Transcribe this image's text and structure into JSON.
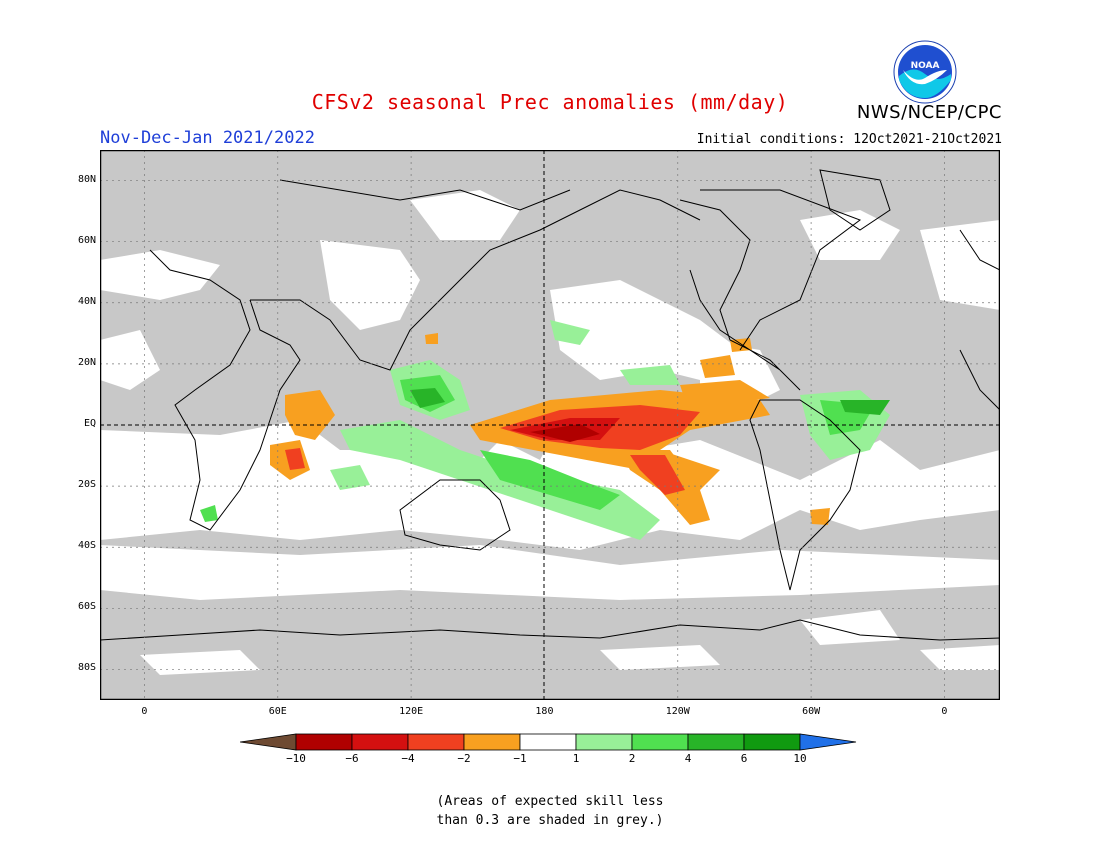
{
  "header": {
    "title": "CFSv2 seasonal Prec anomalies (mm/day)",
    "org": "NWS/NCEP/CPC",
    "logo_text": "NOAA",
    "period": "Nov-Dec-Jan 2021/2022",
    "initial_conditions": "Initial conditions: 12Oct2021-21Oct2021"
  },
  "map": {
    "lat_labels": [
      "80N",
      "60N",
      "40N",
      "20N",
      "EQ",
      "20S",
      "40S",
      "60S",
      "80S"
    ],
    "lat_values": [
      80,
      60,
      40,
      20,
      0,
      -20,
      -40,
      -60,
      -80
    ],
    "lon_labels": [
      "0",
      "60E",
      "120E",
      "180",
      "120W",
      "60W",
      "0"
    ],
    "lon_values": [
      0,
      60,
      120,
      180,
      240,
      300,
      360
    ],
    "lon_range": [
      -20,
      385
    ],
    "lat_range": [
      -90,
      90
    ],
    "grey_color": "#c8c8c8",
    "coast_color": "#000000"
  },
  "legend": {
    "labels": [
      "-10",
      "-6",
      "-4",
      "-2",
      "-1",
      "1",
      "2",
      "4",
      "6",
      "10"
    ],
    "colors": [
      "#6e4a32",
      "#b00000",
      "#d41010",
      "#f04020",
      "#f8a020",
      "#ffffff",
      "#98f098",
      "#50e050",
      "#28b428",
      "#109a10",
      "#2070e8"
    ]
  },
  "note": {
    "line1": "(Areas of expected skill less",
    "line2": "than 0.3 are shaded in grey.)"
  }
}
